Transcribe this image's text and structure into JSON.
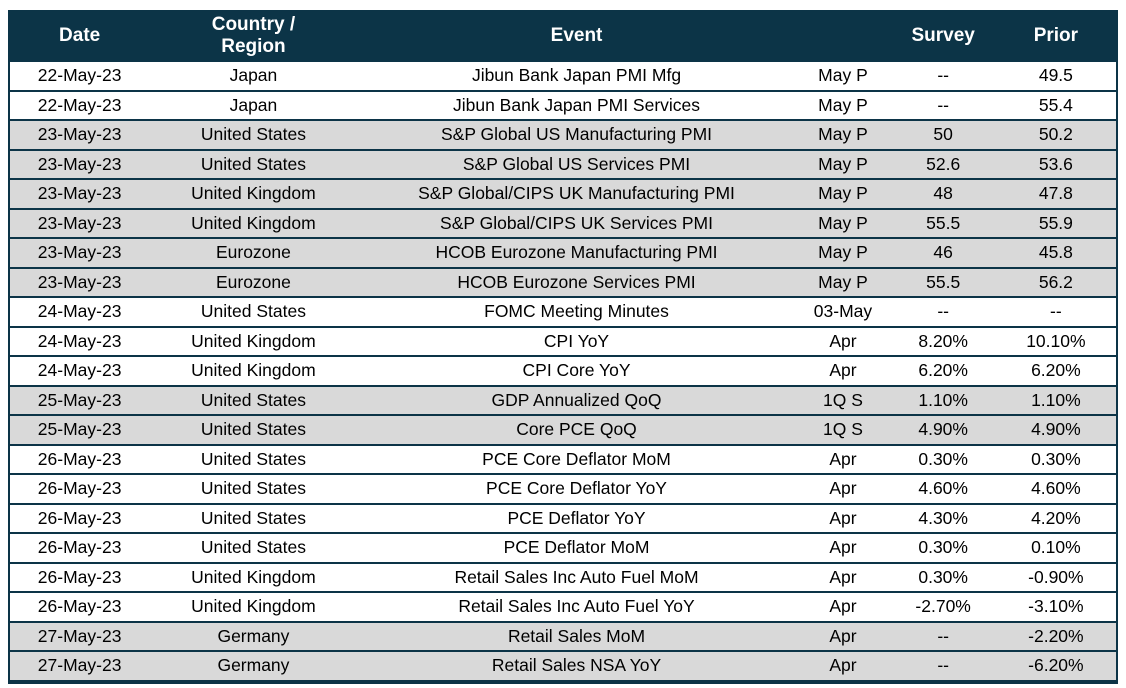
{
  "colors": {
    "header_bg": "#0c3447",
    "header_text": "#ffffff",
    "row_bg": "#ffffff",
    "row_alt_bg": "#d9d9d9",
    "border": "#0c3447",
    "row_text": "#000000"
  },
  "table": {
    "columns": [
      {
        "key": "date",
        "label": "Date"
      },
      {
        "key": "region",
        "label": "Country / Region"
      },
      {
        "key": "event",
        "label": "Event"
      },
      {
        "key": "period",
        "label": ""
      },
      {
        "key": "survey",
        "label": "Survey"
      },
      {
        "key": "prior",
        "label": "Prior"
      }
    ],
    "rows": [
      {
        "date": "22-May-23",
        "region": "Japan",
        "event": "Jibun Bank Japan PMI Mfg",
        "period": "May P",
        "survey": "--",
        "prior": "49.5"
      },
      {
        "date": "22-May-23",
        "region": "Japan",
        "event": "Jibun Bank Japan PMI Services",
        "period": "May P",
        "survey": "--",
        "prior": "55.4"
      },
      {
        "date": "23-May-23",
        "region": "United States",
        "event": "S&P Global US Manufacturing PMI",
        "period": "May P",
        "survey": "50",
        "prior": "50.2"
      },
      {
        "date": "23-May-23",
        "region": "United States",
        "event": "S&P Global US Services PMI",
        "period": "May P",
        "survey": "52.6",
        "prior": "53.6"
      },
      {
        "date": "23-May-23",
        "region": "United Kingdom",
        "event": "S&P Global/CIPS UK Manufacturing PMI",
        "period": "May P",
        "survey": "48",
        "prior": "47.8"
      },
      {
        "date": "23-May-23",
        "region": "United Kingdom",
        "event": "S&P Global/CIPS UK Services PMI",
        "period": "May P",
        "survey": "55.5",
        "prior": "55.9"
      },
      {
        "date": "23-May-23",
        "region": "Eurozone",
        "event": "HCOB Eurozone Manufacturing PMI",
        "period": "May P",
        "survey": "46",
        "prior": "45.8"
      },
      {
        "date": "23-May-23",
        "region": "Eurozone",
        "event": "HCOB Eurozone Services PMI",
        "period": "May P",
        "survey": "55.5",
        "prior": "56.2"
      },
      {
        "date": "24-May-23",
        "region": "United States",
        "event": "FOMC Meeting Minutes",
        "period": "03-May",
        "survey": "--",
        "prior": "--"
      },
      {
        "date": "24-May-23",
        "region": "United Kingdom",
        "event": "CPI YoY",
        "period": "Apr",
        "survey": "8.20%",
        "prior": "10.10%"
      },
      {
        "date": "24-May-23",
        "region": "United Kingdom",
        "event": "CPI Core YoY",
        "period": "Apr",
        "survey": "6.20%",
        "prior": "6.20%"
      },
      {
        "date": "25-May-23",
        "region": "United States",
        "event": "GDP Annualized QoQ",
        "period": "1Q S",
        "survey": "1.10%",
        "prior": "1.10%"
      },
      {
        "date": "25-May-23",
        "region": "United States",
        "event": "Core PCE QoQ",
        "period": "1Q S",
        "survey": "4.90%",
        "prior": "4.90%"
      },
      {
        "date": "26-May-23",
        "region": "United States",
        "event": "PCE Core Deflator MoM",
        "period": "Apr",
        "survey": "0.30%",
        "prior": "0.30%"
      },
      {
        "date": "26-May-23",
        "region": "United States",
        "event": "PCE Core Deflator YoY",
        "period": "Apr",
        "survey": "4.60%",
        "prior": "4.60%"
      },
      {
        "date": "26-May-23",
        "region": "United States",
        "event": "PCE Deflator YoY",
        "period": "Apr",
        "survey": "4.30%",
        "prior": "4.20%"
      },
      {
        "date": "26-May-23",
        "region": "United States",
        "event": "PCE Deflator MoM",
        "period": "Apr",
        "survey": "0.30%",
        "prior": "0.10%"
      },
      {
        "date": "26-May-23",
        "region": "United Kingdom",
        "event": "Retail Sales Inc Auto Fuel MoM",
        "period": "Apr",
        "survey": "0.30%",
        "prior": "-0.90%"
      },
      {
        "date": "26-May-23",
        "region": "United Kingdom",
        "event": "Retail Sales Inc Auto Fuel YoY",
        "period": "Apr",
        "survey": "-2.70%",
        "prior": "-3.10%"
      },
      {
        "date": "27-May-23",
        "region": "Germany",
        "event": "Retail Sales MoM",
        "period": "Apr",
        "survey": "--",
        "prior": "-2.20%"
      },
      {
        "date": "27-May-23",
        "region": "Germany",
        "event": "Retail Sales NSA YoY",
        "period": "Apr",
        "survey": "--",
        "prior": "-6.20%"
      }
    ]
  }
}
